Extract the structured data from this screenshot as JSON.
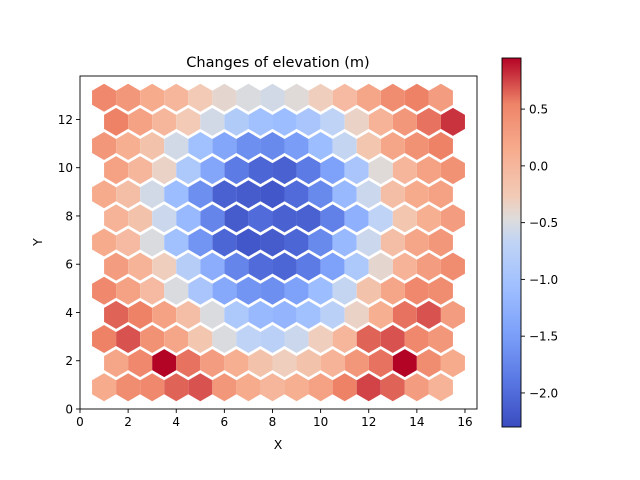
{
  "chart_data": {
    "type": "heatmap",
    "subtype": "hexbin",
    "title": "Changes of elevation (m)",
    "xlabel": "X",
    "ylabel": "Y",
    "xlim": [
      0,
      16.5
    ],
    "ylim": [
      0,
      13.8
    ],
    "xticks": [
      0,
      2,
      4,
      6,
      8,
      10,
      12,
      14,
      16
    ],
    "yticks": [
      0,
      2,
      4,
      6,
      8,
      10,
      12
    ],
    "hex_radius": 0.58,
    "hex_x_step": 1.0,
    "hex_row_step": 1.0,
    "hex_row_offset": 0.5,
    "hex_x_start": 1.0,
    "hex_y_start": 0.9,
    "hex_cols": 15,
    "hex_rows": 13,
    "colormap": "coolwarm",
    "colorbar": {
      "min": -2.3,
      "max": 0.95,
      "ticks": [
        -2.0,
        -1.5,
        -1.0,
        -0.5,
        0.0,
        0.5
      ],
      "tick_labels": [
        "−2.0",
        "−1.5",
        "−1.0",
        "−0.5",
        "0.0",
        "0.5"
      ]
    },
    "values": [
      [
        0.15,
        0.45,
        0.5,
        0.65,
        0.7,
        0.35,
        0.15,
        0.0,
        0.1,
        0.25,
        0.55,
        0.75,
        0.65,
        0.3,
        0.05
      ],
      [
        0.2,
        0.5,
        0.95,
        0.6,
        0.3,
        0.1,
        -0.15,
        -0.3,
        -0.15,
        0.05,
        0.35,
        0.6,
        0.95,
        0.45,
        0.15
      ],
      [
        0.55,
        0.7,
        0.4,
        0.2,
        -0.2,
        -0.5,
        -0.7,
        -0.75,
        -0.6,
        -0.3,
        0.0,
        0.65,
        0.7,
        0.5,
        0.35
      ],
      [
        0.65,
        0.55,
        0.25,
        -0.1,
        -0.5,
        -0.9,
        -1.15,
        -1.2,
        -1.05,
        -0.75,
        -0.35,
        0.1,
        0.6,
        0.7,
        0.3
      ],
      [
        0.5,
        0.25,
        -0.05,
        -0.5,
        -0.95,
        -1.35,
        -1.6,
        -1.65,
        -1.45,
        -1.1,
        -0.65,
        -0.15,
        0.2,
        0.5,
        0.45
      ],
      [
        0.3,
        0.05,
        -0.3,
        -0.8,
        -1.3,
        -1.75,
        -2.0,
        -2.05,
        -1.85,
        -1.45,
        -0.9,
        -0.4,
        0.05,
        0.3,
        0.45
      ],
      [
        0.15,
        -0.05,
        -0.5,
        -1.05,
        -1.6,
        -2.05,
        -2.2,
        -2.15,
        -2.05,
        -1.7,
        -1.15,
        -0.6,
        -0.1,
        0.2,
        0.35
      ],
      [
        0.05,
        -0.15,
        -0.6,
        -1.15,
        -1.75,
        -2.15,
        -2.0,
        -2.1,
        -2.1,
        -1.8,
        -1.25,
        -0.7,
        -0.2,
        0.1,
        0.3
      ],
      [
        0.15,
        -0.1,
        -0.55,
        -1.1,
        -1.65,
        -2.1,
        -2.15,
        -2.2,
        -2.0,
        -1.7,
        -1.15,
        -0.6,
        -0.1,
        0.15,
        0.25
      ],
      [
        0.25,
        0.0,
        -0.35,
        -0.9,
        -1.4,
        -1.85,
        -2.05,
        -2.1,
        -1.85,
        -1.45,
        -0.95,
        -0.45,
        0.0,
        0.25,
        0.4
      ],
      [
        0.35,
        0.1,
        -0.15,
        -0.55,
        -1.05,
        -1.4,
        -1.65,
        -1.7,
        -1.5,
        -1.1,
        -0.65,
        -0.2,
        0.2,
        0.4,
        0.55
      ],
      [
        0.55,
        0.25,
        0.0,
        -0.25,
        -0.55,
        -0.85,
        -1.05,
        -1.1,
        -0.95,
        -0.7,
        -0.35,
        0.05,
        0.35,
        0.6,
        0.8
      ],
      [
        0.5,
        0.35,
        0.15,
        0.0,
        -0.25,
        -0.4,
        -0.5,
        -0.55,
        -0.45,
        -0.3,
        -0.05,
        0.2,
        0.45,
        0.55,
        0.3
      ]
    ]
  }
}
